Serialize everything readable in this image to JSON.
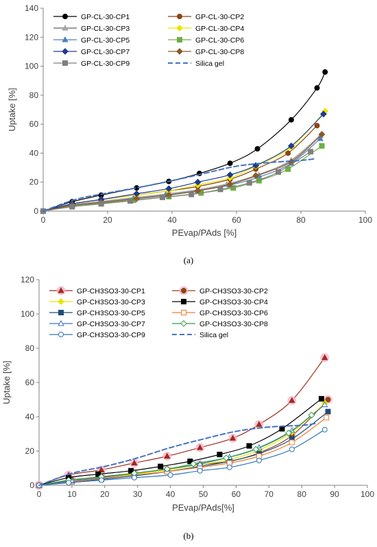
{
  "chart_data": [
    {
      "type": "line",
      "panel_label": "(a)",
      "xlabel": "PEvap/PAds [%]",
      "ylabel": "Uptake [%]",
      "xlim": [
        0,
        100
      ],
      "ylim": [
        0,
        140
      ],
      "xticks": [
        0,
        20,
        40,
        60,
        80,
        100
      ],
      "yticks": [
        0,
        20,
        40,
        60,
        80,
        100,
        120,
        140
      ],
      "grid": false,
      "legend_placement": "top-left, two columns",
      "series": [
        {
          "name": "GP-CL-30-CP1",
          "color": "#000000",
          "marker": "circle",
          "fill": true,
          "dash": "",
          "width": 1.2,
          "x": [
            0,
            9,
            18,
            29,
            39,
            48.5,
            58,
            66.5,
            77,
            85,
            87.5
          ],
          "y": [
            0,
            6.5,
            11,
            16,
            20.5,
            26,
            33,
            43,
            63,
            85,
            96
          ]
        },
        {
          "name": "GP-CL-30-CP2",
          "color": "#8B4513",
          "marker": "circle",
          "fill": true,
          "dash": "",
          "width": 1.2,
          "x": [
            0,
            9,
            18,
            29,
            39,
            48,
            58,
            66,
            76,
            85
          ],
          "y": [
            0,
            5,
            8,
            11,
            14,
            17,
            22,
            29,
            40,
            59
          ]
        },
        {
          "name": "GP-CL-30-CP3",
          "color": "#A6A6A6",
          "marker": "triangle",
          "fill": true,
          "dash": "",
          "width": 2.5,
          "x": [
            0,
            9,
            18,
            28,
            38,
            48,
            57,
            67,
            77,
            86
          ],
          "y": [
            0,
            4,
            6.5,
            9,
            11.5,
            14.5,
            18.5,
            25,
            35,
            52
          ]
        },
        {
          "name": "GP-CL-30-CP4",
          "color": "#E6E600",
          "marker": "diamond",
          "fill": true,
          "dash": "",
          "width": 1.2,
          "x": [
            0,
            9,
            18,
            29,
            39,
            48,
            58,
            66,
            77,
            87.5
          ],
          "y": [
            0,
            5,
            8,
            11,
            14,
            18,
            23,
            31,
            44,
            69
          ]
        },
        {
          "name": "GP-CL-30-CP5",
          "color": "#4F81BD",
          "marker": "triangle",
          "fill": true,
          "dash": "",
          "width": 1.2,
          "x": [
            0,
            9,
            18,
            28,
            38,
            48,
            58,
            67,
            77,
            86
          ],
          "y": [
            0,
            4,
            6,
            8.5,
            11,
            14,
            18,
            23.5,
            33,
            50
          ]
        },
        {
          "name": "GP-CL-30-CP6",
          "color": "#70AD47",
          "marker": "square",
          "fill": true,
          "dash": "",
          "width": 1.2,
          "x": [
            0,
            9,
            18,
            28,
            39,
            49,
            59,
            67,
            76,
            86.5
          ],
          "y": [
            0,
            3.5,
            5.5,
            7.5,
            10,
            12.5,
            16,
            21,
            29,
            45
          ]
        },
        {
          "name": "GP-CL-30-CP7",
          "color": "#1F3A93",
          "marker": "diamond",
          "fill": true,
          "dash": "",
          "width": 1.2,
          "x": [
            0,
            9,
            18,
            29,
            39,
            48,
            58,
            66,
            77,
            87
          ],
          "y": [
            0,
            5,
            8,
            12,
            15.5,
            20,
            25,
            31.5,
            45,
            67
          ]
        },
        {
          "name": "GP-CL-30-CP8",
          "color": "#8B5A2B",
          "marker": "diamond",
          "fill": true,
          "dash": "",
          "width": 1.2,
          "x": [
            0,
            9,
            18,
            29,
            39,
            48,
            58,
            66,
            77,
            86.5
          ],
          "y": [
            0,
            4,
            6,
            8.5,
            11,
            14,
            18.5,
            24.5,
            34,
            53
          ]
        },
        {
          "name": "GP-CL-30-CP9",
          "color": "#7F7F7F",
          "marker": "square",
          "fill": true,
          "dash": "",
          "width": 1.2,
          "x": [
            0,
            9,
            18,
            27,
            37,
            46,
            55,
            64,
            73,
            83
          ],
          "y": [
            0,
            3,
            5,
            7,
            9.5,
            11.5,
            15,
            19.5,
            27,
            41
          ]
        },
        {
          "name": "Silica gel",
          "color": "#4472C4",
          "marker": "none",
          "fill": false,
          "dash": "7,4",
          "width": 2,
          "x": [
            0,
            10,
            20,
            30,
            40,
            50,
            60,
            70,
            80,
            84
          ],
          "y": [
            0,
            8,
            12.5,
            16.5,
            21,
            26,
            31,
            33.5,
            35,
            36
          ]
        }
      ]
    },
    {
      "type": "line",
      "panel_label": "(b)",
      "xlabel": "PEvap/PAds[%]",
      "ylabel": "Uptake [%]",
      "xlim": [
        0,
        100
      ],
      "ylim": [
        0,
        120
      ],
      "xticks": [
        0,
        10,
        20,
        30,
        40,
        50,
        60,
        70,
        80,
        90,
        100
      ],
      "yticks": [
        0,
        20,
        40,
        60,
        80,
        100,
        120
      ],
      "grid": false,
      "legend_placement": "top-left, two columns",
      "series": [
        {
          "name": "GP-CH3SO3-30-CP1",
          "color": "#A02B1E",
          "marker": "triangle",
          "fill": true,
          "halo": "#F4B6C8",
          "dash": "",
          "width": 1.2,
          "x": [
            0,
            9,
            19,
            29,
            39,
            49,
            59,
            67,
            77,
            87
          ],
          "y": [
            0,
            6,
            9,
            13,
            17,
            22,
            27.5,
            35.5,
            49.5,
            74.5
          ]
        },
        {
          "name": "GP-CH3SO3-30-CP2",
          "color": "#8B4513",
          "marker": "circle",
          "fill": true,
          "halo": "#F4B6C8",
          "dash": "",
          "width": 1.2,
          "x": [
            0,
            10,
            19,
            29,
            39,
            49,
            58,
            67,
            77,
            88
          ],
          "y": [
            0,
            3,
            5,
            7,
            9,
            12,
            14,
            19,
            29,
            50
          ]
        },
        {
          "name": "GP-CH3SO3-30-CP3",
          "color": "#E6E600",
          "marker": "diamond",
          "fill": true,
          "dash": "",
          "width": 1.2,
          "x": [
            0,
            10,
            19,
            29,
            39,
            49,
            58,
            67,
            77,
            87
          ],
          "y": [
            0,
            2.5,
            4.5,
            6.5,
            9,
            12,
            15,
            20.5,
            31,
            48
          ]
        },
        {
          "name": "GP-CH3SO3-30-CP4",
          "color": "#000000",
          "marker": "square",
          "fill": true,
          "dash": "",
          "width": 1.2,
          "x": [
            0,
            9,
            18,
            28,
            37,
            46,
            55,
            64,
            74,
            86
          ],
          "y": [
            0,
            4.5,
            6.5,
            8.5,
            11,
            14,
            18,
            23,
            33,
            50.5
          ]
        },
        {
          "name": "GP-CH3SO3-30-CP5",
          "color": "#1F4E79",
          "marker": "square",
          "fill": true,
          "dash": "",
          "width": 1.2,
          "x": [
            0,
            10,
            19,
            29,
            39,
            49,
            58,
            67,
            77,
            88
          ],
          "y": [
            0,
            2,
            3.5,
            5.5,
            8,
            11,
            14,
            18.5,
            27,
            43
          ]
        },
        {
          "name": "GP-CH3SO3-30-CP6",
          "color": "#ED7D31",
          "marker": "square",
          "fill": false,
          "dash": "",
          "width": 1.2,
          "x": [
            0,
            10,
            19,
            29,
            39,
            49,
            58,
            67,
            77,
            87.5
          ],
          "y": [
            0,
            2,
            4,
            6,
            8,
            10.5,
            13,
            17,
            25,
            39.5
          ]
        },
        {
          "name": "GP-CH3SO3-30-CP7",
          "color": "#4472C4",
          "marker": "triangle",
          "fill": false,
          "dash": "",
          "width": 1.2,
          "x": [
            0,
            10,
            19,
            29,
            39,
            49,
            58,
            67,
            77,
            87
          ],
          "y": [
            0,
            2.5,
            4.5,
            7,
            9.5,
            12.5,
            16.5,
            22,
            32,
            47
          ]
        },
        {
          "name": "GP-CH3SO3-30-CP8",
          "color": "#2E9D42",
          "marker": "diamond",
          "fill": false,
          "dash": "",
          "width": 1.2,
          "x": [
            0,
            9,
            19,
            29,
            39,
            47,
            57,
            66,
            76,
            83
          ],
          "y": [
            0,
            3,
            5,
            7,
            9.5,
            12.5,
            16,
            21,
            30.5,
            41
          ]
        },
        {
          "name": "GP-CH3SO3-30-CP9",
          "color": "#2E75B6",
          "marker": "circle",
          "fill": false,
          "dash": "",
          "width": 1.2,
          "x": [
            0,
            9,
            19,
            29,
            40,
            49,
            58,
            67,
            77,
            87
          ],
          "y": [
            0,
            1.5,
            3,
            4.5,
            6,
            8.5,
            10.5,
            14.5,
            21,
            32.5
          ]
        },
        {
          "name": "Silica gel",
          "color": "#4472C4",
          "marker": "none",
          "fill": false,
          "dash": "7,4",
          "width": 2,
          "x": [
            0,
            10,
            20,
            30,
            40,
            50,
            60,
            70,
            80,
            84
          ],
          "y": [
            0,
            7,
            11,
            16,
            22,
            27,
            31.5,
            34,
            35,
            36
          ]
        }
      ]
    }
  ]
}
